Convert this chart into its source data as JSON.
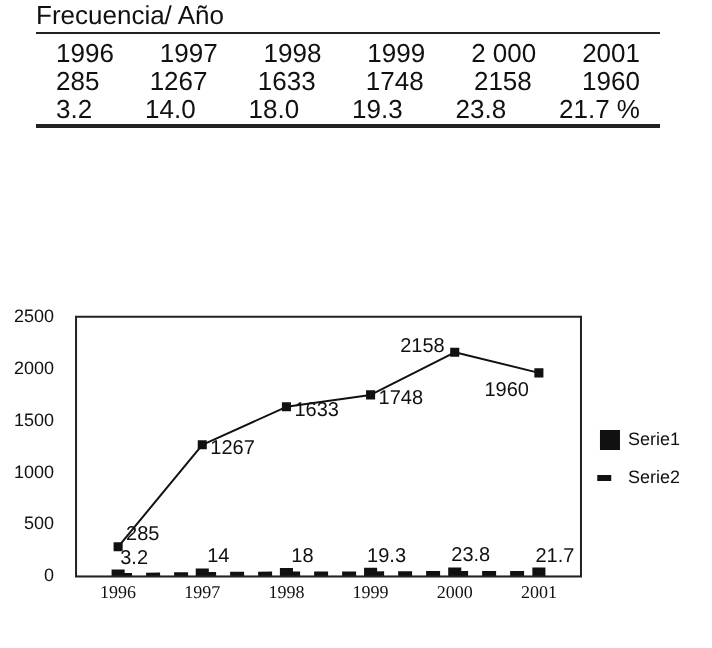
{
  "chart_data": {
    "type": "line",
    "title": "Frecuencia/ Año",
    "annotations": [
      "1996  1997  1998  1999  2 000  2001",
      "285  1267  1633  1748  2158  1960",
      "3.2  14.0  18.0  19.3  23.8  21.7 %"
    ],
    "categories": [
      "1996",
      "1997",
      "1998",
      "1999",
      "2000",
      "2001"
    ],
    "series": [
      {
        "name": "Serie1",
        "color": "#111111",
        "values": [
          285,
          1267,
          1633,
          1748,
          2158,
          1960
        ],
        "marker": "square",
        "line_style": "solid"
      },
      {
        "name": "Serie2",
        "color": "#111111",
        "values": [
          3.2,
          14,
          18,
          19.3,
          23.8,
          21.7
        ],
        "marker": "square",
        "line_style": "dashed"
      }
    ],
    "ylim": [
      0,
      2500
    ],
    "yticks": [
      0,
      500,
      1000,
      1500,
      2000,
      2500
    ],
    "grid": false,
    "legend": "right",
    "data_labels": true
  }
}
